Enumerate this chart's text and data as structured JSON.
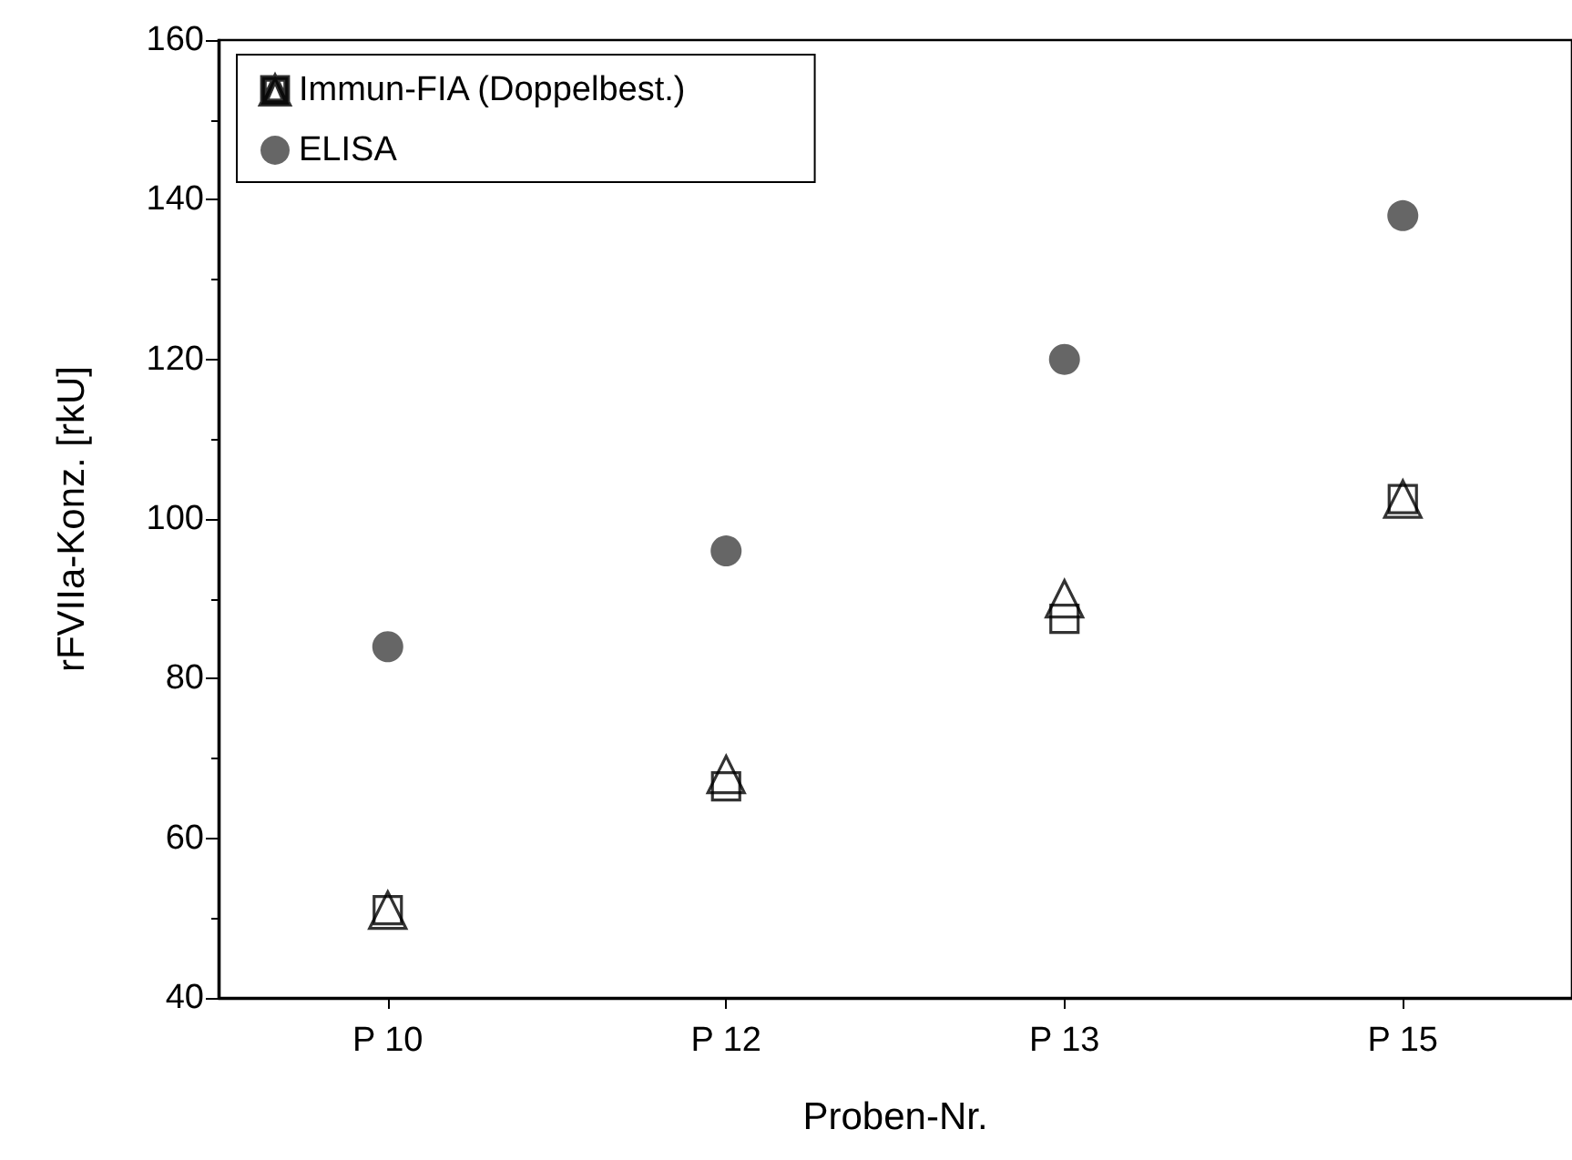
{
  "chart_data": {
    "type": "scatter",
    "xlabel": "Proben-Nr.",
    "ylabel": "rFVIIa-Konz. [rkU]",
    "categories": [
      "P 10",
      "P 12",
      "P 13",
      "P 15"
    ],
    "series": [
      {
        "name": "Immun-FIA (Doppelbest.)",
        "color": "#000000",
        "marker": "square",
        "values": [
          51,
          66.5,
          87.5,
          102.5
        ]
      },
      {
        "color": "#000000",
        "marker": "triangle",
        "values": [
          51,
          68,
          90,
          102.5
        ]
      },
      {
        "name": "ELISA",
        "color": "#404040",
        "marker": "circle",
        "values": [
          84,
          96,
          120,
          138
        ]
      }
    ],
    "ylim": [
      40,
      160
    ],
    "yticks": [
      40,
      60,
      80,
      100,
      120,
      140,
      160
    ],
    "grid": false,
    "legend": "top left"
  }
}
